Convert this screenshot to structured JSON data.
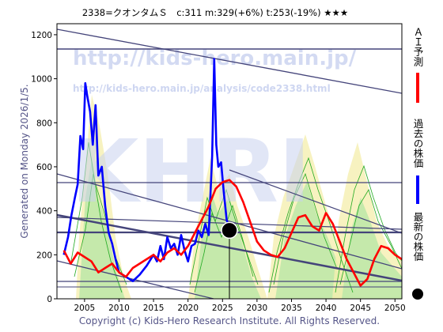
{
  "header": {
    "title": "2338=クオンタムＳ　c:311  m:329(+6%)  t:253(-19%)  ★★★"
  },
  "side_label": "Generated on Monday 2026/1/5.",
  "watermark": {
    "url1": "http://kids-hero.main.jp/",
    "url2": "http://kids-hero.main.jp/analysis/code2338.html",
    "logo": "KHRI"
  },
  "copyright": "Copyright (c) Kids-Hero Research Institute. All Rights Reserved.",
  "legend": [
    {
      "label": "ＡＩ予測",
      "color": "#ff0000",
      "marker": "line"
    },
    {
      "label": "過去の株価",
      "color": "#0000ff",
      "marker": "line"
    },
    {
      "label": "最新の株価",
      "color": "#000000",
      "marker": "dot"
    }
  ],
  "chart_data": {
    "type": "line",
    "title": "2338=クオンタムＳ　c:311  m:329(+6%)  t:253(-19%)  ★★★",
    "xlim": [
      2001,
      2051
    ],
    "ylim": [
      0,
      1250
    ],
    "x_ticks": [
      2005,
      2010,
      2015,
      2020,
      2025,
      2030,
      2035,
      2040,
      2045,
      2050
    ],
    "y_ticks": [
      0,
      200,
      400,
      600,
      800,
      1000,
      1200
    ],
    "grid": false,
    "legend_position": "right",
    "series": [
      {
        "name": "過去の株価",
        "color": "#0000ff",
        "x": [
          2002,
          2002.6,
          2003.1,
          2003.6,
          2004.0,
          2004.4,
          2004.8,
          2005.1,
          2005.4,
          2005.8,
          2006.2,
          2006.6,
          2007.0,
          2007.5,
          2008.0,
          2008.5,
          2009.0,
          2009.5,
          2010.0,
          2011.0,
          2012.0,
          2013.0,
          2014.0,
          2015.0,
          2015.5,
          2016.0,
          2016.5,
          2017.0,
          2017.5,
          2018.0,
          2018.5,
          2019.0,
          2019.5,
          2020.0,
          2020.5,
          2021.0,
          2021.5,
          2022.0,
          2022.5,
          2023.0,
          2023.5,
          2023.8,
          2024.1,
          2024.4,
          2024.8,
          2025.2,
          2025.6,
          2026.0
        ],
        "values": [
          200,
          280,
          380,
          460,
          520,
          740,
          680,
          980,
          920,
          850,
          700,
          880,
          560,
          600,
          420,
          300,
          250,
          180,
          120,
          100,
          80,
          110,
          150,
          200,
          170,
          240,
          180,
          280,
          230,
          250,
          200,
          290,
          220,
          170,
          240,
          250,
          310,
          280,
          340,
          290,
          650,
          1090,
          700,
          600,
          620,
          480,
          360,
          311
        ]
      },
      {
        "name": "ＡＩ予測",
        "color": "#ff0000",
        "x": [
          2002,
          2003,
          2004,
          2005,
          2006,
          2007,
          2008,
          2009,
          2010,
          2011,
          2012,
          2013,
          2014,
          2015,
          2016,
          2017,
          2018,
          2019,
          2020,
          2021,
          2022,
          2023,
          2024,
          2025,
          2026,
          2027,
          2028,
          2029,
          2030,
          2031,
          2032,
          2033,
          2034,
          2035,
          2036,
          2037,
          2038,
          2039,
          2040,
          2041,
          2042,
          2043,
          2044,
          2045,
          2046,
          2047,
          2048,
          2049,
          2050,
          2051
        ],
        "values": [
          220,
          160,
          210,
          190,
          170,
          120,
          140,
          160,
          120,
          100,
          140,
          160,
          180,
          200,
          170,
          210,
          230,
          200,
          240,
          300,
          360,
          420,
          500,
          530,
          540,
          510,
          440,
          350,
          260,
          220,
          200,
          190,
          230,
          300,
          370,
          380,
          330,
          310,
          390,
          340,
          260,
          180,
          120,
          60,
          90,
          180,
          240,
          230,
          200,
          180
        ]
      }
    ],
    "latest_point": {
      "x": 2026.0,
      "y": 311,
      "label": "最新の株価"
    }
  }
}
